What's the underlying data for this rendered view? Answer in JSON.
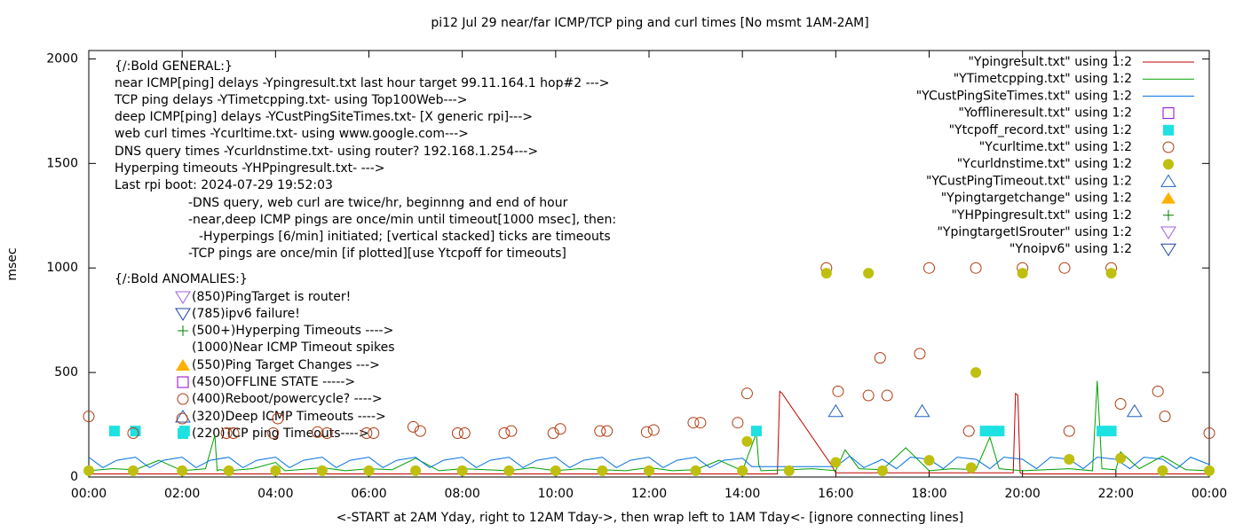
{
  "chart_data": {
    "type": "line",
    "title": "pi12 Jul 29  near/far ICMP/TCP ping and curl times [No msmt 1AM-2AM]",
    "y_label": "msec",
    "x_label": "<-START at 2AM Yday, right to 12AM Tday->, then wrap left to 1AM Tday<- [ignore connecting lines]",
    "xlim": [
      0,
      24
    ],
    "xticks": [
      {
        "value": 0,
        "label": "00:00"
      },
      {
        "value": 2,
        "label": "02:00"
      },
      {
        "value": 4,
        "label": "04:00"
      },
      {
        "value": 6,
        "label": "06:00"
      },
      {
        "value": 8,
        "label": "08:00"
      },
      {
        "value": 10,
        "label": "10:00"
      },
      {
        "value": 12,
        "label": "12:00"
      },
      {
        "value": 14,
        "label": "14:00"
      },
      {
        "value": 16,
        "label": "16:00"
      },
      {
        "value": 18,
        "label": "18:00"
      },
      {
        "value": 20,
        "label": "20:00"
      },
      {
        "value": 22,
        "label": "22:00"
      },
      {
        "value": 24,
        "label": "00:00"
      }
    ],
    "ylim": [
      0,
      2040
    ],
    "yticks": [
      0,
      500,
      1000,
      1500,
      2000
    ],
    "annotations": [
      "{/:Bold GENERAL:}",
      "near ICMP[ping] delays -Ypingresult.txt last hour target 99.11.164.1 hop#2 --->",
      "TCP ping delays -YTimetcpping.txt- using Top100Web--->",
      "deep ICMP[ping] delays -YCustPingSiteTimes.txt- [X generic rpi]--->",
      "web curl times -Ycurltime.txt- using www.google.com--->",
      "DNS query times -Ycurldnstime.txt- using router? 192.168.1.254--->",
      "Hyperping timeouts -YHPpingresult.txt- --->",
      "Last rpi boot: 2024-07-29 19:52:03",
      "-DNS query, web curl are twice/hr, beginnng and end of hour",
      "-near,deep ICMP pings are once/min until timeout[1000 msec], then:",
      "-Hyperpings [6/min] initiated; [vertical stacked] ticks are timeouts",
      "-TCP pings are once/min [if plotted][use Ytcpoff for timeouts]",
      "{/:Bold ANOMALIES:}",
      "(850)PingTarget is router!",
      "(785)ipv6 failure!",
      "(500+)Hyperping Timeouts ---->",
      "(1000)Near ICMP Timeout spikes",
      "(550)Ping Target Changes --->",
      "(450)OFFLINE STATE ----->",
      "(400)Reboot/powercycle? ---->",
      "(320)Deep ICMP Timeouts ---->",
      "(220)TCP ping Timeouts---->"
    ],
    "series": [
      {
        "name": "\"Ypingresult.txt\" using 1:2",
        "color": "#c00000",
        "style": "line",
        "x": [
          0,
          2,
          4,
          6,
          8,
          10,
          12,
          14,
          14.75,
          14.8,
          14.85,
          15.9,
          16,
          18,
          19.8,
          19.85,
          19.9,
          19.95,
          20,
          22,
          24
        ],
        "values": [
          15,
          15,
          15,
          15,
          15,
          15,
          15,
          15,
          15,
          410,
          400,
          60,
          20,
          20,
          20,
          400,
          390,
          20,
          15,
          15,
          15
        ]
      },
      {
        "name": "\"YTimetcpping.txt\" using 1:2",
        "color": "#00a000",
        "style": "line",
        "x": [
          0,
          0.5,
          1,
          1.5,
          2,
          2.5,
          2.7,
          2.75,
          2.8,
          3,
          3.5,
          4,
          4.2,
          4.5,
          5,
          5.5,
          6,
          6.5,
          7,
          7.5,
          8,
          8.5,
          9,
          9.5,
          10,
          10.5,
          11,
          11.5,
          12,
          12.5,
          13,
          13.5,
          14,
          14.3,
          14.35,
          14.4,
          15,
          15.5,
          16,
          16.2,
          16.5,
          17,
          17.5,
          18,
          18.5,
          19,
          19.3,
          19.5,
          20,
          20.5,
          21,
          21.5,
          21.6,
          21.7,
          22,
          22.1,
          22.5,
          23,
          23.5,
          24
        ],
        "values": [
          30,
          40,
          35,
          80,
          30,
          40,
          200,
          30,
          35,
          30,
          40,
          70,
          30,
          35,
          45,
          30,
          40,
          35,
          90,
          30,
          40,
          35,
          30,
          45,
          30,
          40,
          35,
          30,
          45,
          30,
          35,
          80,
          30,
          210,
          60,
          30,
          35,
          40,
          30,
          130,
          40,
          35,
          140,
          30,
          40,
          35,
          190,
          40,
          30,
          35,
          40,
          30,
          460,
          40,
          35,
          120,
          40,
          100,
          35,
          30
        ]
      },
      {
        "name": "\"YCustPingSiteTimes.txt\" using 1:2",
        "color": "#0070e0",
        "style": "line",
        "x": [
          0,
          0.3,
          0.6,
          1,
          1.3,
          1.6,
          2,
          2.3,
          2.6,
          3,
          3.3,
          3.6,
          4,
          4.3,
          4.6,
          5,
          5.3,
          5.6,
          6,
          6.3,
          6.6,
          7,
          7.3,
          7.6,
          8,
          8.3,
          8.6,
          9,
          9.3,
          9.6,
          10,
          10.3,
          10.6,
          11,
          11.3,
          11.6,
          12,
          12.3,
          12.6,
          13,
          13.3,
          13.6,
          14,
          14.2,
          16,
          16.3,
          16.6,
          17,
          17.3,
          17.6,
          18,
          18.3,
          18.6,
          19,
          19.3,
          19.6,
          20,
          20.3,
          20.6,
          21,
          21.3,
          21.6,
          22,
          22.3,
          22.6,
          23,
          23.3,
          23.6,
          24
        ],
        "values": [
          95,
          45,
          80,
          95,
          45,
          80,
          95,
          45,
          80,
          95,
          45,
          80,
          95,
          45,
          80,
          95,
          45,
          80,
          95,
          45,
          80,
          95,
          45,
          80,
          95,
          45,
          80,
          95,
          45,
          80,
          95,
          45,
          80,
          95,
          45,
          80,
          95,
          45,
          80,
          95,
          45,
          80,
          90,
          50,
          50,
          100,
          45,
          85,
          40,
          95,
          85,
          40,
          95,
          85,
          40,
          95,
          85,
          40,
          95,
          85,
          40,
          95,
          85,
          40,
          95,
          85,
          40,
          95,
          60
        ]
      },
      {
        "name": "\"Yofflineresult.txt\" using 1:2",
        "color": "#9400d3",
        "style": "points",
        "marker": "square-open",
        "x": [],
        "values": []
      },
      {
        "name": "\"Ytcpoff_record.txt\" using 1:2",
        "color": "#1ee1e1",
        "style": "points",
        "marker": "square",
        "x": [
          0.55,
          1.0,
          2.05,
          14.3,
          19.2,
          19.35,
          19.5,
          21.7,
          21.9
        ],
        "values": [
          220,
          220,
          220,
          220,
          220,
          220,
          220,
          220,
          220
        ]
      },
      {
        "name": "\"Ycurltime.txt\" using 1:2",
        "color": "#b03a10",
        "style": "points",
        "marker": "circle-open",
        "x": [
          0,
          0.95,
          2,
          2.95,
          3.1,
          3.95,
          4.05,
          4.9,
          5.1,
          5.95,
          6.1,
          6.95,
          7.1,
          7.9,
          8.05,
          8.9,
          9.05,
          9.95,
          10.1,
          10.95,
          11.1,
          11.95,
          12.1,
          12.95,
          13.1,
          13.9,
          14.1,
          15.8,
          16.05,
          16.7,
          16.95,
          17.1,
          17.8,
          18,
          18.85,
          19,
          20,
          20.9,
          21,
          21.9,
          22.1,
          22.9,
          23.05,
          24
        ],
        "values": [
          290,
          210,
          280,
          210,
          210,
          210,
          280,
          215,
          210,
          210,
          210,
          240,
          220,
          210,
          210,
          210,
          220,
          210,
          230,
          220,
          220,
          215,
          225,
          260,
          260,
          260,
          400,
          1000,
          410,
          390,
          570,
          390,
          590,
          1000,
          220,
          1000,
          1000,
          1000,
          220,
          1000,
          350,
          410,
          290,
          210
        ]
      },
      {
        "name": "\"Ycurldnstime.txt\" using 1:2",
        "color": "#bfbf10",
        "style": "points",
        "marker": "circle",
        "x": [
          0,
          0.95,
          2,
          3,
          4,
          5,
          6,
          7,
          8,
          9,
          10,
          11,
          12,
          13,
          14,
          14.1,
          15,
          15.8,
          16,
          16.7,
          17,
          18,
          18.9,
          19,
          20,
          21,
          21.9,
          22.1,
          23,
          24
        ],
        "values": [
          30,
          30,
          30,
          30,
          30,
          30,
          30,
          30,
          30,
          30,
          30,
          30,
          30,
          30,
          30,
          170,
          30,
          975,
          70,
          975,
          30,
          80,
          45,
          500,
          975,
          85,
          975,
          90,
          30,
          30
        ]
      },
      {
        "name": "\"YCustPingTimeout.txt\" using 1:2",
        "color": "#2060c0",
        "style": "points",
        "marker": "triangle-open",
        "x": [
          16,
          17.85,
          22.4
        ],
        "values": [
          315,
          315,
          315
        ]
      },
      {
        "name": "\"Ypingtargetchange\" using 1:2",
        "color": "#ffb000",
        "style": "points",
        "marker": "triangle",
        "x": [],
        "values": []
      },
      {
        "name": "\"YHPpingresult.txt\" using 1:2",
        "color": "#008000",
        "style": "points",
        "marker": "plus",
        "x": [],
        "values": []
      },
      {
        "name": "\"YpingtargetISrouter\" using 1:2",
        "color": "#a060e0",
        "style": "points",
        "marker": "triangle-down-open",
        "x": [],
        "values": []
      },
      {
        "name": "\"Ynoipv6\" using 1:2",
        "color": "#2040a0",
        "style": "points",
        "marker": "triangle-down-open",
        "x": [],
        "values": []
      }
    ]
  }
}
